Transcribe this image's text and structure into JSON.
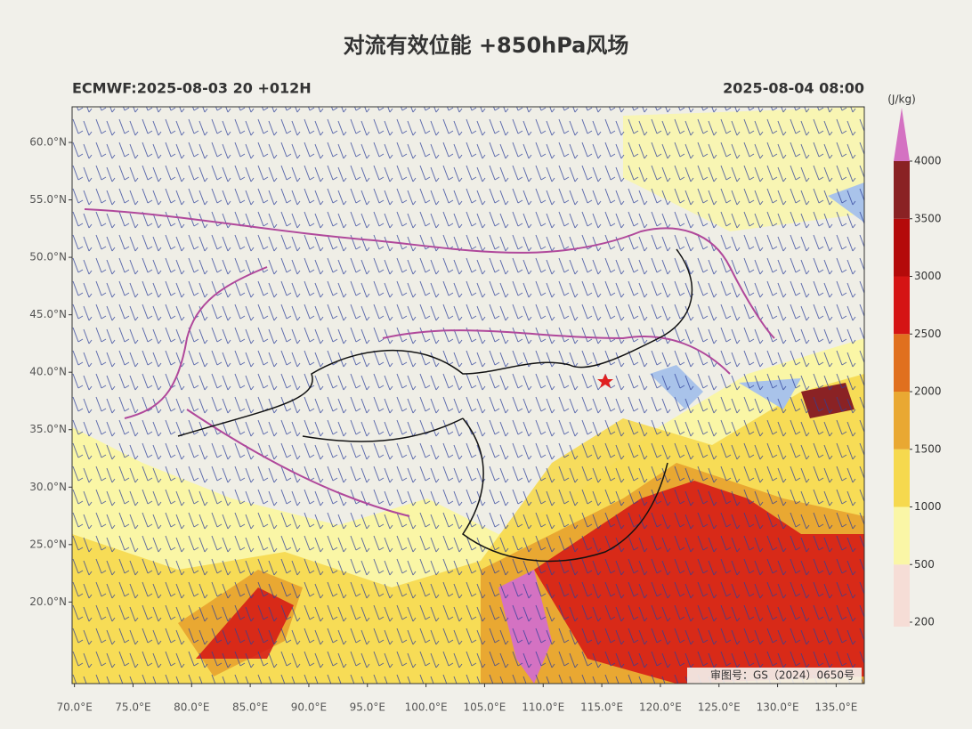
{
  "title": "对流有效位能 +850hPa风场",
  "model_run": "ECMWF:2025-08-03 20 +012H",
  "valid_time": "2025-08-04 08:00",
  "map": {
    "lonlim": [
      69.8,
      137.4
    ],
    "latlim": [
      12.9,
      63.1
    ],
    "lat_ticks": [
      {
        "value": 60,
        "label": "60.0°N"
      },
      {
        "value": 55,
        "label": "55.0°N"
      },
      {
        "value": 50,
        "label": "50.0°N"
      },
      {
        "value": 45,
        "label": "45.0°N"
      },
      {
        "value": 40,
        "label": "40.0°N"
      },
      {
        "value": 35,
        "label": "35.0°N"
      },
      {
        "value": 30,
        "label": "30.0°N"
      },
      {
        "value": 25,
        "label": "25.0°N"
      },
      {
        "value": 20,
        "label": "20.0°N"
      }
    ],
    "lon_ticks": [
      {
        "value": 70,
        "label": "70.0°E"
      },
      {
        "value": 75,
        "label": "75.0°E"
      },
      {
        "value": 80,
        "label": "80.0°E"
      },
      {
        "value": 85,
        "label": "85.0°E"
      },
      {
        "value": 90,
        "label": "90.0°E"
      },
      {
        "value": 95,
        "label": "95.0°E"
      },
      {
        "value": 100,
        "label": "100.0°E"
      },
      {
        "value": 105,
        "label": "105.0°E"
      },
      {
        "value": 110,
        "label": "110.0°E"
      },
      {
        "value": 115,
        "label": "115.0°E"
      },
      {
        "value": 120,
        "label": "120.0°E"
      },
      {
        "value": 125,
        "label": "125.0°E"
      },
      {
        "value": 130,
        "label": "130.0°E"
      },
      {
        "value": 135,
        "label": "135.0°E"
      }
    ],
    "approval": "审图号：GS（2024）0650号"
  },
  "colorbar": {
    "unit": "(J/kg)",
    "levels": [
      200,
      500,
      1000,
      1500,
      2000,
      2500,
      3000,
      3500,
      4000
    ],
    "colors": [
      "#f6ddd6",
      "#faf6a6",
      "#f6d94e",
      "#e9a832",
      "#e0701e",
      "#d51414",
      "#b40a0a",
      "#8a2224"
    ],
    "extend_color": "#d472c2"
  }
}
